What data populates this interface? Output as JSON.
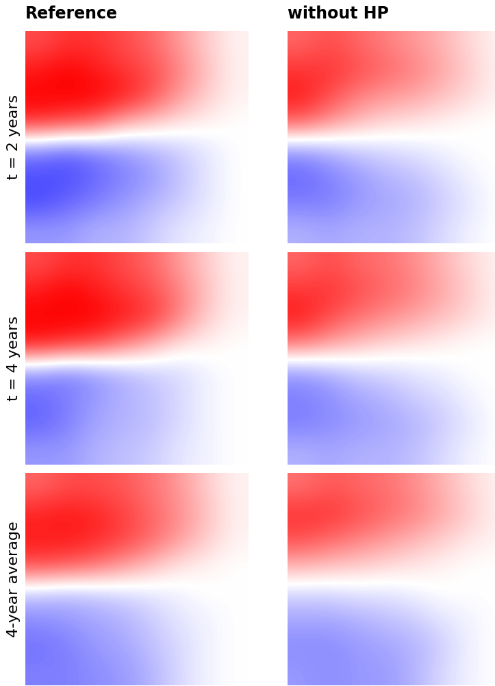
{
  "chart_data": {
    "type": "heatmap",
    "tick_labels": false,
    "columns": [
      "Reference",
      "without HP"
    ],
    "rows": [
      "t = 2 years",
      "t = 4 years",
      "4-year average"
    ],
    "color_range": [
      -1,
      1
    ],
    "panels": [
      [
        [
          [
            0.7,
            0.8,
            0.8,
            0.7,
            0.6,
            0.4,
            0.2,
            0.05
          ],
          [
            0.9,
            1.0,
            0.9,
            0.8,
            0.7,
            0.5,
            0.25,
            0.05
          ],
          [
            1.0,
            1.0,
            1.0,
            0.9,
            0.7,
            0.4,
            0.2,
            0.05
          ],
          [
            0.8,
            0.7,
            0.6,
            0.3,
            0.2,
            0.1,
            0.05,
            0.0
          ],
          [
            -0.5,
            -0.6,
            -0.5,
            -0.4,
            -0.3,
            -0.2,
            -0.1,
            0.0
          ],
          [
            -0.7,
            -0.7,
            -0.6,
            -0.5,
            -0.4,
            -0.25,
            -0.1,
            0.0
          ],
          [
            -0.7,
            -0.6,
            -0.5,
            -0.4,
            -0.3,
            -0.2,
            -0.1,
            0.0
          ],
          [
            -0.4,
            -0.4,
            -0.3,
            -0.3,
            -0.2,
            -0.1,
            -0.05,
            0.0
          ]
        ],
        [
          [
            0.6,
            0.7,
            0.6,
            0.5,
            0.4,
            0.3,
            0.15,
            0.05
          ],
          [
            0.8,
            0.8,
            0.7,
            0.6,
            0.5,
            0.35,
            0.2,
            0.05
          ],
          [
            0.9,
            0.7,
            0.5,
            0.4,
            0.35,
            0.25,
            0.15,
            0.05
          ],
          [
            0.6,
            0.4,
            0.25,
            0.15,
            0.1,
            0.05,
            0.0,
            0.0
          ],
          [
            -0.4,
            -0.3,
            -0.2,
            -0.15,
            -0.1,
            -0.05,
            0.0,
            0.0
          ],
          [
            -0.6,
            -0.5,
            -0.4,
            -0.3,
            -0.25,
            -0.15,
            -0.05,
            0.0
          ],
          [
            -0.5,
            -0.5,
            -0.4,
            -0.35,
            -0.3,
            -0.2,
            -0.1,
            0.0
          ],
          [
            -0.3,
            -0.35,
            -0.3,
            -0.3,
            -0.25,
            -0.15,
            -0.05,
            0.0
          ]
        ]
      ],
      [
        [
          [
            0.7,
            0.8,
            0.8,
            0.7,
            0.6,
            0.4,
            0.2,
            0.05
          ],
          [
            0.9,
            1.0,
            0.9,
            0.8,
            0.7,
            0.5,
            0.25,
            0.05
          ],
          [
            1.0,
            1.0,
            1.0,
            0.9,
            0.8,
            0.5,
            0.2,
            0.05
          ],
          [
            0.9,
            0.8,
            0.7,
            0.5,
            0.3,
            0.1,
            0.05,
            0.0
          ],
          [
            -0.4,
            -0.5,
            -0.4,
            -0.3,
            -0.2,
            -0.15,
            -0.05,
            0.0
          ],
          [
            -0.6,
            -0.5,
            -0.4,
            -0.3,
            -0.25,
            -0.15,
            -0.05,
            0.0
          ],
          [
            -0.6,
            -0.5,
            -0.35,
            -0.3,
            -0.25,
            -0.15,
            -0.05,
            0.0
          ],
          [
            -0.4,
            -0.4,
            -0.3,
            -0.25,
            -0.2,
            -0.1,
            -0.05,
            0.0
          ]
        ],
        [
          [
            0.6,
            0.7,
            0.6,
            0.55,
            0.45,
            0.3,
            0.15,
            0.05
          ],
          [
            0.8,
            0.8,
            0.7,
            0.6,
            0.5,
            0.35,
            0.2,
            0.05
          ],
          [
            0.9,
            0.7,
            0.55,
            0.45,
            0.35,
            0.25,
            0.15,
            0.05
          ],
          [
            0.5,
            0.35,
            0.25,
            0.15,
            0.1,
            0.05,
            0.0,
            0.0
          ],
          [
            -0.4,
            -0.3,
            -0.2,
            -0.15,
            -0.1,
            -0.05,
            0.0,
            0.0
          ],
          [
            -0.5,
            -0.45,
            -0.35,
            -0.3,
            -0.2,
            -0.15,
            -0.05,
            0.0
          ],
          [
            -0.5,
            -0.45,
            -0.4,
            -0.35,
            -0.3,
            -0.2,
            -0.1,
            0.0
          ],
          [
            -0.3,
            -0.35,
            -0.3,
            -0.3,
            -0.25,
            -0.15,
            -0.05,
            0.0
          ]
        ]
      ],
      [
        [
          [
            0.6,
            0.7,
            0.7,
            0.65,
            0.55,
            0.4,
            0.2,
            0.05
          ],
          [
            0.85,
            0.9,
            0.85,
            0.75,
            0.6,
            0.45,
            0.25,
            0.05
          ],
          [
            0.9,
            0.9,
            0.85,
            0.75,
            0.6,
            0.4,
            0.2,
            0.05
          ],
          [
            0.7,
            0.65,
            0.55,
            0.4,
            0.25,
            0.1,
            0.05,
            0.0
          ],
          [
            -0.2,
            -0.25,
            -0.2,
            -0.15,
            -0.1,
            -0.05,
            0.0,
            0.0
          ],
          [
            -0.45,
            -0.4,
            -0.35,
            -0.3,
            -0.2,
            -0.1,
            -0.05,
            0.0
          ],
          [
            -0.55,
            -0.5,
            -0.4,
            -0.35,
            -0.25,
            -0.15,
            -0.05,
            0.0
          ],
          [
            -0.5,
            -0.5,
            -0.45,
            -0.4,
            -0.3,
            -0.15,
            -0.05,
            0.0
          ]
        ],
        [
          [
            0.55,
            0.65,
            0.6,
            0.55,
            0.45,
            0.3,
            0.15,
            0.05
          ],
          [
            0.8,
            0.8,
            0.7,
            0.6,
            0.5,
            0.35,
            0.2,
            0.05
          ],
          [
            0.7,
            0.6,
            0.5,
            0.4,
            0.3,
            0.2,
            0.1,
            0.05
          ],
          [
            0.3,
            0.25,
            0.2,
            0.15,
            0.1,
            0.05,
            0.0,
            0.0
          ],
          [
            -0.15,
            -0.15,
            -0.1,
            -0.1,
            -0.05,
            0.0,
            0.0,
            0.0
          ],
          [
            -0.35,
            -0.35,
            -0.3,
            -0.25,
            -0.2,
            -0.1,
            -0.05,
            0.0
          ],
          [
            -0.45,
            -0.45,
            -0.4,
            -0.35,
            -0.3,
            -0.2,
            -0.05,
            0.0
          ],
          [
            -0.4,
            -0.45,
            -0.4,
            -0.4,
            -0.3,
            -0.15,
            -0.05,
            0.0
          ]
        ]
      ]
    ]
  }
}
